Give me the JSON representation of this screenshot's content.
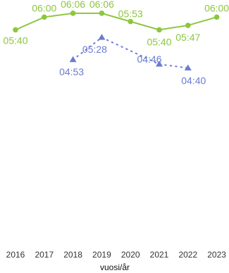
{
  "chart_data": {
    "type": "line",
    "xlabel": "vuosi/år",
    "ylabel": "",
    "x": [
      "2016",
      "2017",
      "2018",
      "2019",
      "2020",
      "2021",
      "2022",
      "2023"
    ],
    "ylim": [
      0,
      6.3
    ],
    "grid": false,
    "series": [
      {
        "values": [
          "05:40",
          "06:00",
          "06:06",
          "06:06",
          "05:53",
          "05:40",
          "05:47",
          "06:00"
        ],
        "color": "#8dc63f",
        "marker": "circle",
        "line_style": "solid"
      },
      {
        "values": [
          null,
          null,
          "04:53",
          "05:28",
          null,
          "04:46",
          "04:40",
          null
        ],
        "color": "#6b7bd0",
        "marker": "triangle",
        "line_style": "dotted"
      }
    ]
  }
}
